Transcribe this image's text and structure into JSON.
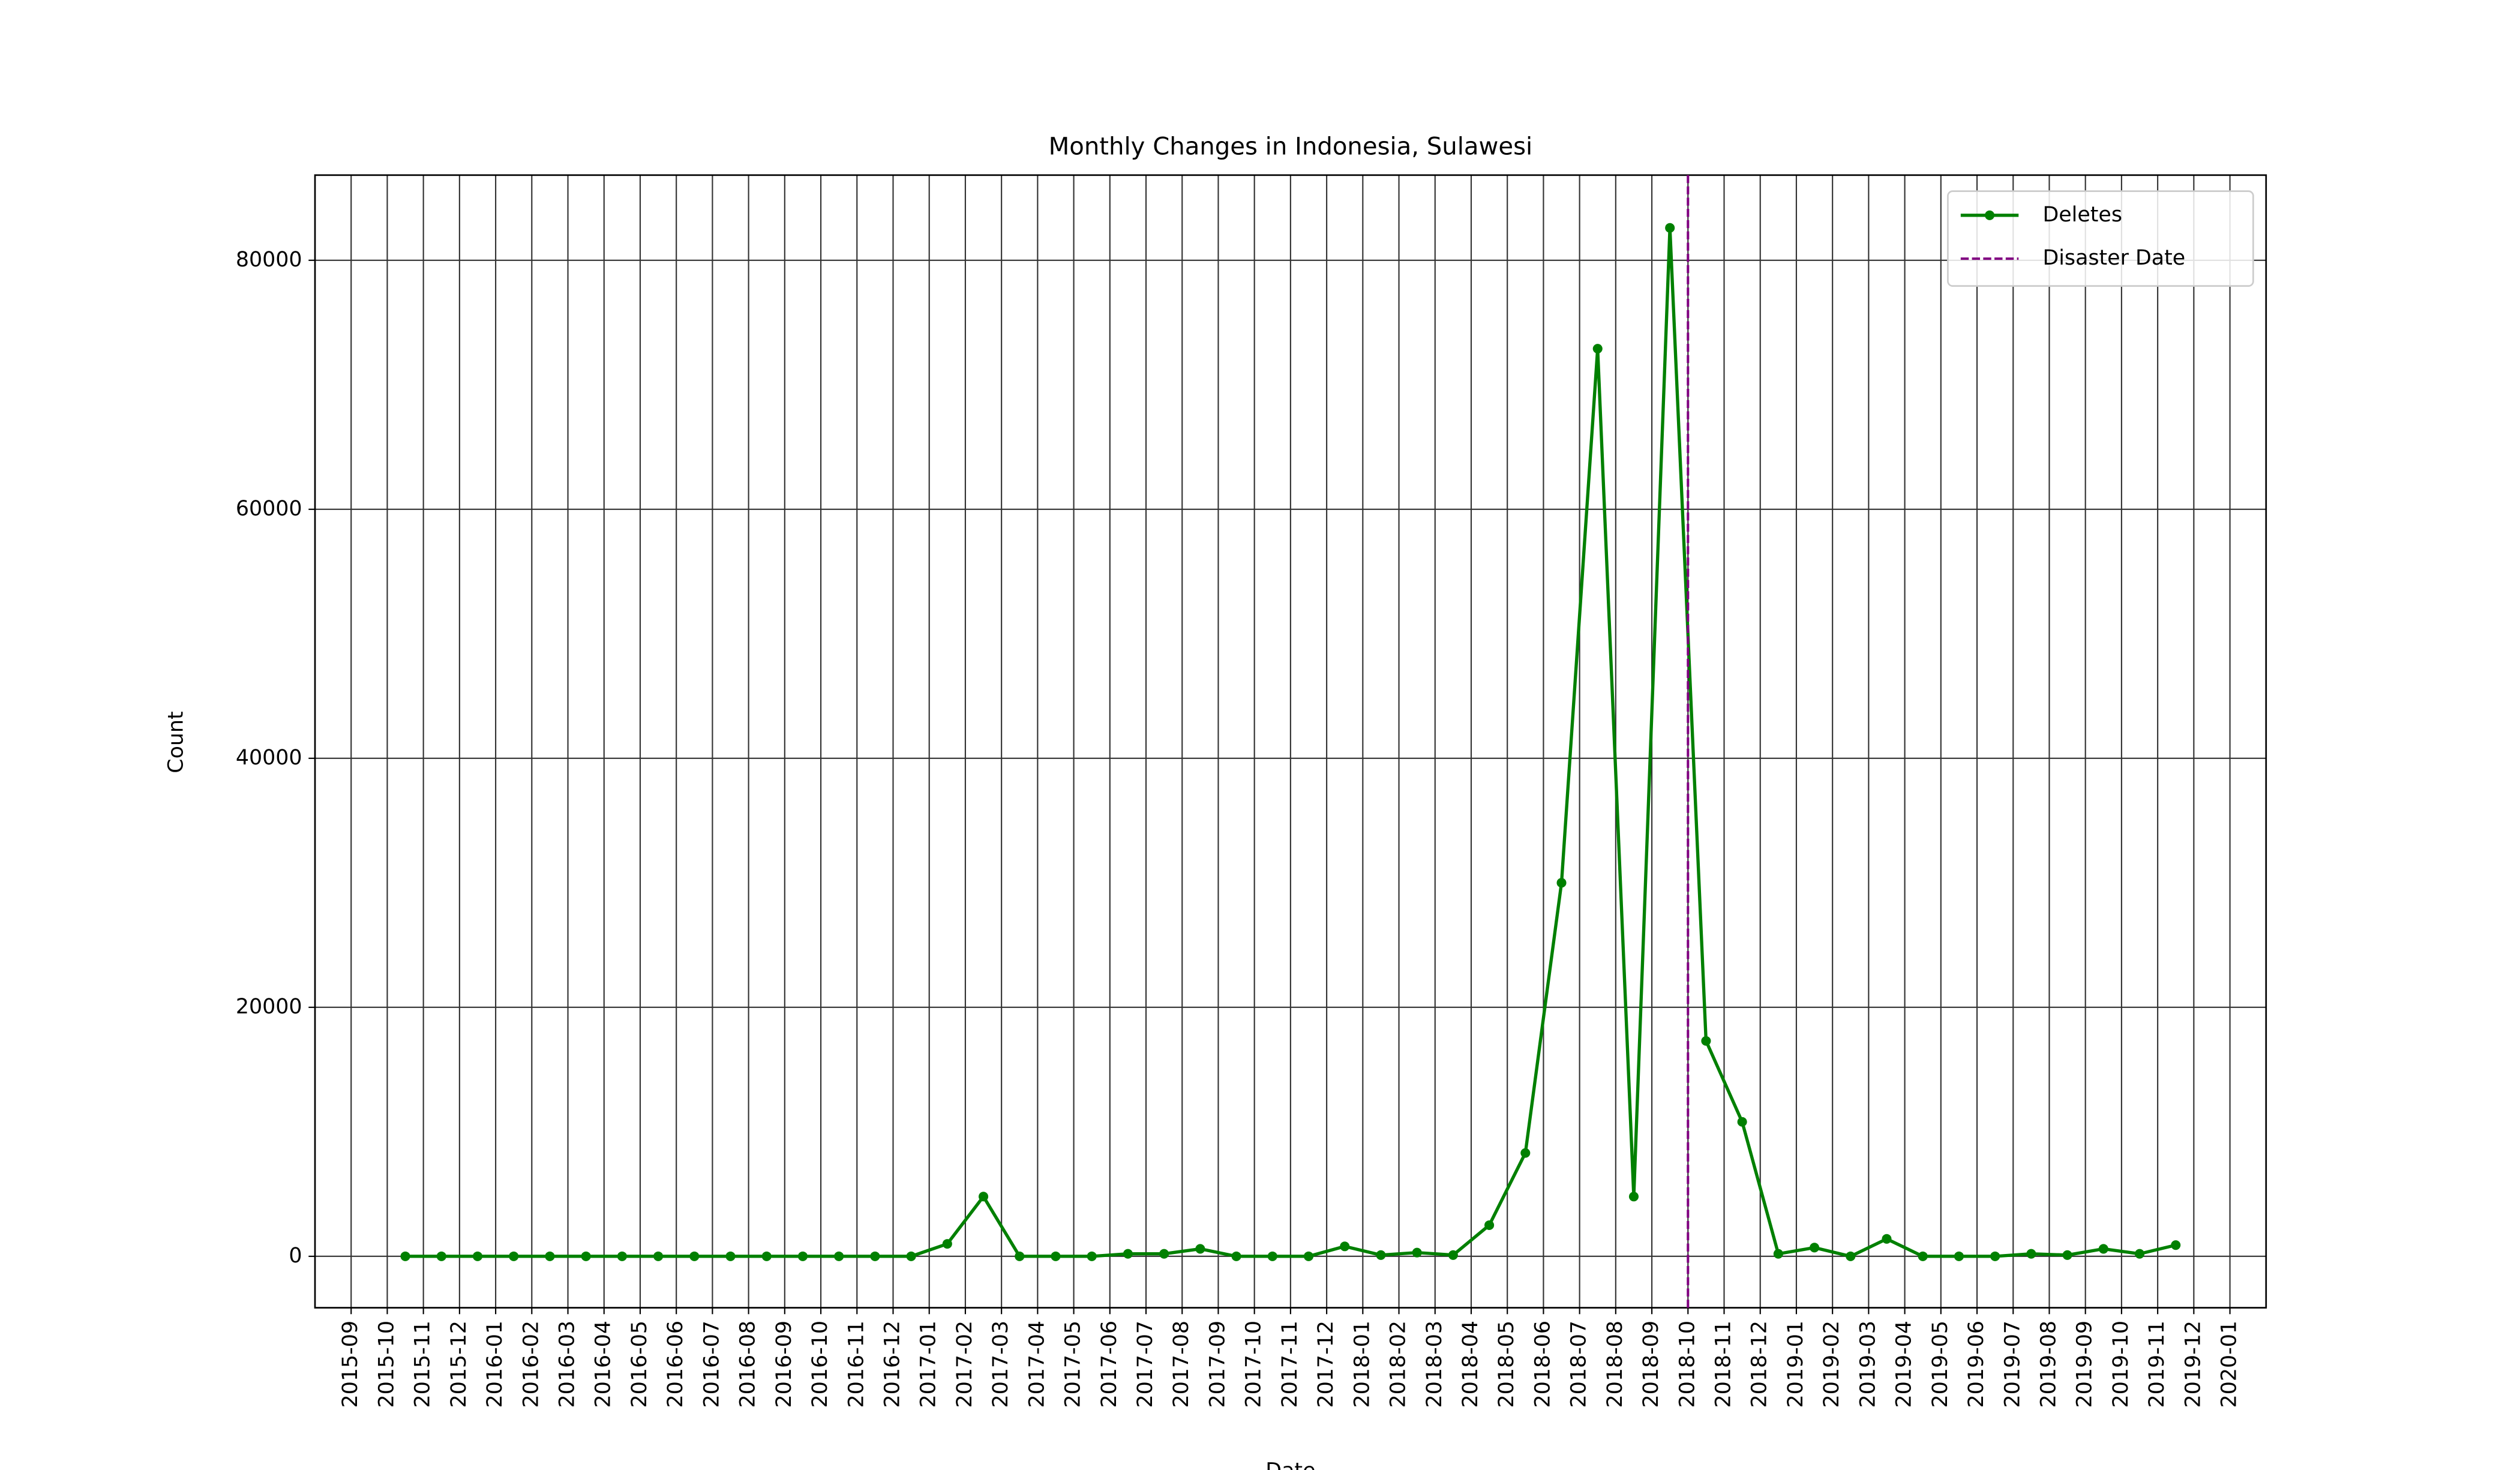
{
  "chart_data": {
    "type": "line",
    "title": "Monthly Changes in Indonesia, Sulawesi",
    "xlabel": "Date",
    "ylabel": "Count",
    "x": [
      "2015-10",
      "2015-11",
      "2015-12",
      "2016-01",
      "2016-02",
      "2016-03",
      "2016-04",
      "2016-05",
      "2016-06",
      "2016-07",
      "2016-08",
      "2016-09",
      "2016-10",
      "2016-11",
      "2016-12",
      "2017-01",
      "2017-02",
      "2017-03",
      "2017-04",
      "2017-05",
      "2017-06",
      "2017-07",
      "2017-08",
      "2017-09",
      "2017-10",
      "2017-11",
      "2017-12",
      "2018-01",
      "2018-02",
      "2018-03",
      "2018-04",
      "2018-05",
      "2018-06",
      "2018-07",
      "2018-08",
      "2018-09",
      "2018-10",
      "2018-11",
      "2018-12",
      "2019-01",
      "2019-02",
      "2019-03",
      "2019-04",
      "2019-05",
      "2019-06",
      "2019-07",
      "2019-08",
      "2019-09",
      "2019-10",
      "2019-11"
    ],
    "series": [
      {
        "name": "Deletes",
        "color": "#008000",
        "values": [
          0,
          0,
          0,
          0,
          0,
          0,
          0,
          0,
          0,
          0,
          0,
          0,
          0,
          0,
          0,
          1000,
          4800,
          0,
          0,
          0,
          200,
          200,
          600,
          0,
          0,
          0,
          800,
          100,
          300,
          100,
          2500,
          8300,
          30000,
          72900,
          4800,
          82600,
          17300,
          10800,
          200,
          700,
          0,
          1400,
          0,
          0,
          0,
          200,
          100,
          600,
          200,
          900
        ]
      }
    ],
    "vline": {
      "name": "Disaster Date",
      "x": "2018-10",
      "color": "#800080"
    },
    "xlim": [
      "2015-08",
      "2020-02"
    ],
    "xticks": [
      "2015-09",
      "2015-10",
      "2015-11",
      "2015-12",
      "2016-01",
      "2016-02",
      "2016-03",
      "2016-04",
      "2016-05",
      "2016-06",
      "2016-07",
      "2016-08",
      "2016-09",
      "2016-10",
      "2016-11",
      "2016-12",
      "2017-01",
      "2017-02",
      "2017-03",
      "2017-04",
      "2017-05",
      "2017-06",
      "2017-07",
      "2017-08",
      "2017-09",
      "2017-10",
      "2017-11",
      "2017-12",
      "2018-01",
      "2018-02",
      "2018-03",
      "2018-04",
      "2018-05",
      "2018-06",
      "2018-07",
      "2018-08",
      "2018-09",
      "2018-10",
      "2018-11",
      "2018-12",
      "2019-01",
      "2019-02",
      "2019-03",
      "2019-04",
      "2019-05",
      "2019-06",
      "2019-07",
      "2019-08",
      "2019-09",
      "2019-10",
      "2019-11",
      "2019-12",
      "2020-01"
    ],
    "ylim": [
      -4130,
      86840
    ],
    "yticks": [
      0,
      20000,
      40000,
      60000,
      80000
    ],
    "grid": true,
    "legend": "upper right"
  }
}
